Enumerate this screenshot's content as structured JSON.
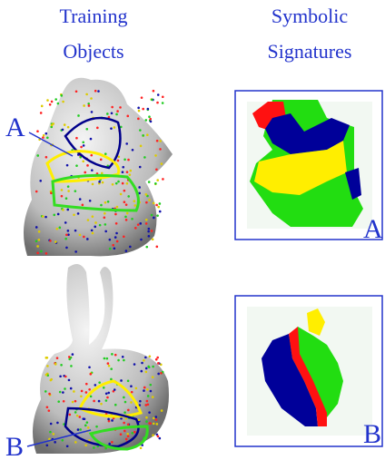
{
  "headers": {
    "left": [
      "Training",
      "Objects"
    ],
    "right": [
      "Symbolic",
      "Signatures"
    ]
  },
  "rows": [
    {
      "object_label": "A",
      "signature_label": "A"
    },
    {
      "object_label": "B",
      "signature_label": "B"
    }
  ]
}
